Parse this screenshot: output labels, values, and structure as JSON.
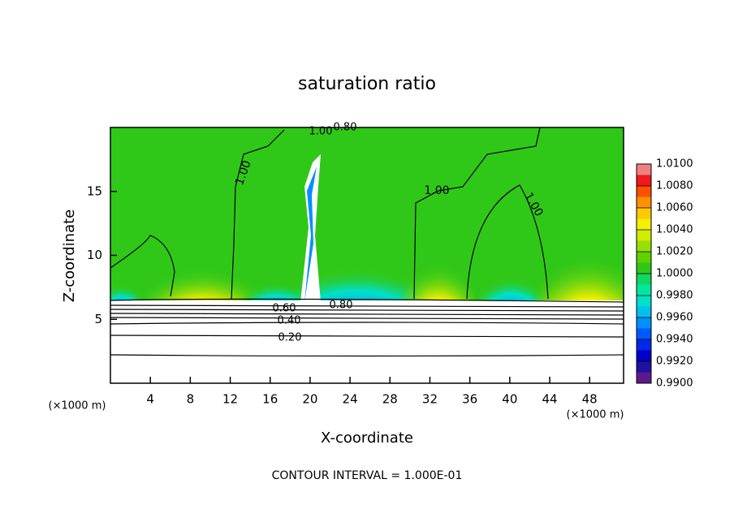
{
  "chart_data": {
    "type": "contour",
    "title": "saturation ratio",
    "xlabel": "X-coordinate",
    "ylabel": "Z-coordinate",
    "x_unit_label": "(×1000 m)",
    "footer": "CONTOUR INTERVAL = 1.000E-01",
    "xlim": [
      0,
      51.4
    ],
    "ylim": [
      0,
      20
    ],
    "xticks": [
      4,
      8,
      12,
      16,
      20,
      24,
      28,
      32,
      36,
      40,
      44,
      48
    ],
    "yticks": [
      5,
      10,
      15
    ],
    "contour_labels": [
      "1.00",
      "0.80",
      "1.00",
      "1.00",
      "1.00",
      "0.60",
      "0.80",
      "0.40",
      "0.20"
    ],
    "colorbar": {
      "lim": [
        0.99,
        1.01
      ],
      "ticks": [
        {
          "value": 0.99,
          "label": "0.9900"
        },
        {
          "value": 0.992,
          "label": "0.9920"
        },
        {
          "value": 0.994,
          "label": "0.9940"
        },
        {
          "value": 0.996,
          "label": "0.9960"
        },
        {
          "value": 0.998,
          "label": "0.9980"
        },
        {
          "value": 1.0,
          "label": "1.0000"
        },
        {
          "value": 1.002,
          "label": "1.0020"
        },
        {
          "value": 1.004,
          "label": "1.0040"
        },
        {
          "value": 1.006,
          "label": "1.0060"
        },
        {
          "value": 1.008,
          "label": "1.0080"
        },
        {
          "value": 1.01,
          "label": "1.0100"
        }
      ],
      "colors": [
        "#5a1a8c",
        "#2010a0",
        "#0000c8",
        "#0028e8",
        "#0058ff",
        "#0090ff",
        "#00c0f0",
        "#00e0c8",
        "#00e8a0",
        "#10d860",
        "#30c818",
        "#60d000",
        "#98e000",
        "#d0ec00",
        "#f4f000",
        "#ffc800",
        "#ff9000",
        "#ff5000",
        "#f01818",
        "#f08080"
      ]
    }
  }
}
